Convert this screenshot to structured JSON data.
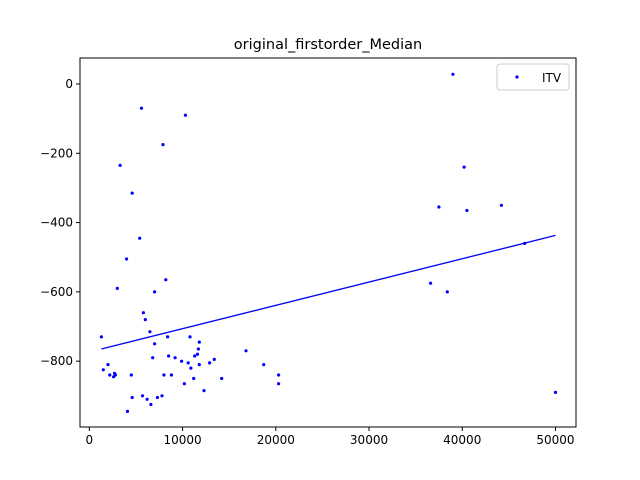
{
  "chart_data": {
    "type": "scatter",
    "title": "original_firstorder_Median",
    "xlabel": "",
    "ylabel": "",
    "xlim": [
      -1000,
      52200
    ],
    "ylim": [
      -990,
      75
    ],
    "xticks": [
      0,
      10000,
      20000,
      30000,
      40000,
      50000
    ],
    "yticks": [
      0,
      -200,
      -400,
      -600,
      -800
    ],
    "grid": false,
    "legend": {
      "position": "top-right",
      "entries": [
        "ITV"
      ]
    },
    "colors": {
      "series": "#0000ff"
    },
    "series": [
      {
        "name": "ITV",
        "points": [
          [
            1300,
            -730
          ],
          [
            1500,
            -825
          ],
          [
            2000,
            -810
          ],
          [
            2200,
            -840
          ],
          [
            2600,
            -845
          ],
          [
            2700,
            -835
          ],
          [
            2800,
            -840
          ],
          [
            3000,
            -590
          ],
          [
            3300,
            -235
          ],
          [
            4000,
            -505
          ],
          [
            4100,
            -945
          ],
          [
            4500,
            -840
          ],
          [
            4600,
            -905
          ],
          [
            4600,
            -315
          ],
          [
            5400,
            -445
          ],
          [
            5600,
            -70
          ],
          [
            5700,
            -900
          ],
          [
            5800,
            -660
          ],
          [
            6000,
            -680
          ],
          [
            6200,
            -910
          ],
          [
            6500,
            -715
          ],
          [
            6600,
            -925
          ],
          [
            6800,
            -790
          ],
          [
            7000,
            -750
          ],
          [
            7000,
            -600
          ],
          [
            7300,
            -905
          ],
          [
            7800,
            -900
          ],
          [
            7900,
            -175
          ],
          [
            8000,
            -840
          ],
          [
            8200,
            -565
          ],
          [
            8400,
            -730
          ],
          [
            8500,
            -785
          ],
          [
            8800,
            -840
          ],
          [
            9200,
            -790
          ],
          [
            9900,
            -800
          ],
          [
            10200,
            -865
          ],
          [
            10300,
            -90
          ],
          [
            10600,
            -805
          ],
          [
            10800,
            -730
          ],
          [
            10900,
            -820
          ],
          [
            11200,
            -850
          ],
          [
            11300,
            -785
          ],
          [
            11600,
            -780
          ],
          [
            11700,
            -765
          ],
          [
            11800,
            -745
          ],
          [
            11800,
            -810
          ],
          [
            12300,
            -885
          ],
          [
            12900,
            -805
          ],
          [
            13400,
            -795
          ],
          [
            14200,
            -850
          ],
          [
            16800,
            -770
          ],
          [
            18700,
            -810
          ],
          [
            20300,
            -840
          ],
          [
            20300,
            -865
          ],
          [
            36600,
            -575
          ],
          [
            37500,
            -355
          ],
          [
            38400,
            -600
          ],
          [
            39000,
            28
          ],
          [
            40200,
            -240
          ],
          [
            40500,
            -365
          ],
          [
            44200,
            -350
          ],
          [
            46700,
            -460
          ],
          [
            50000,
            -890
          ]
        ],
        "trend_line": {
          "x": [
            1300,
            50000
          ],
          "y": [
            -765,
            -437
          ]
        }
      }
    ]
  }
}
